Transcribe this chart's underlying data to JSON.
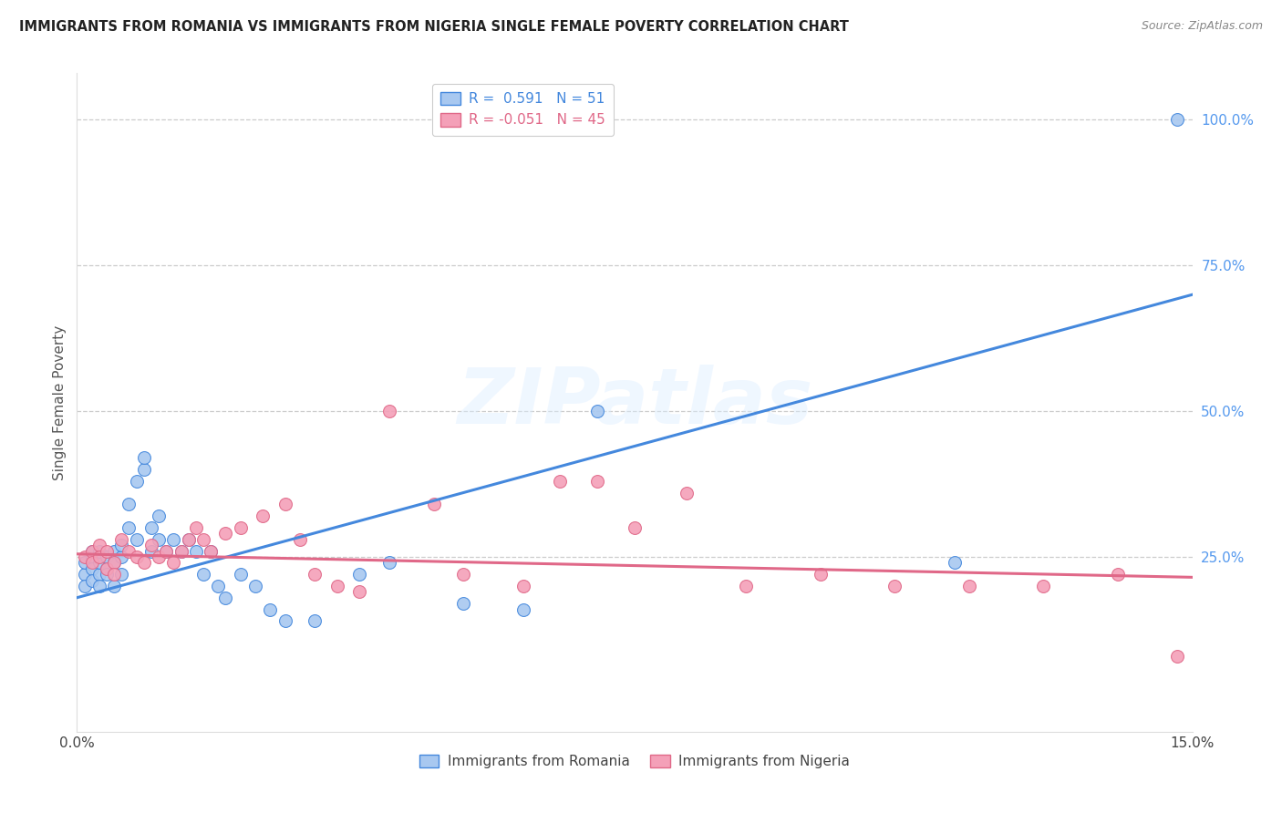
{
  "title": "IMMIGRANTS FROM ROMANIA VS IMMIGRANTS FROM NIGERIA SINGLE FEMALE POVERTY CORRELATION CHART",
  "source": "Source: ZipAtlas.com",
  "ylabel_label": "Single Female Poverty",
  "legend_label1": "Immigrants from Romania",
  "legend_label2": "Immigrants from Nigeria",
  "R1": 0.591,
  "N1": 51,
  "R2": -0.051,
  "N2": 45,
  "xmin": 0.0,
  "xmax": 0.15,
  "ymin": -0.05,
  "ymax": 1.08,
  "color_romania": "#A8C8F0",
  "color_nigeria": "#F4A0B8",
  "color_line_romania": "#4488DD",
  "color_line_nigeria": "#E06888",
  "watermark_text": "ZIPatlas",
  "romania_x": [
    0.001,
    0.001,
    0.001,
    0.002,
    0.002,
    0.002,
    0.002,
    0.003,
    0.003,
    0.003,
    0.003,
    0.004,
    0.004,
    0.004,
    0.005,
    0.005,
    0.005,
    0.006,
    0.006,
    0.006,
    0.007,
    0.007,
    0.008,
    0.008,
    0.009,
    0.009,
    0.01,
    0.01,
    0.011,
    0.011,
    0.012,
    0.013,
    0.014,
    0.015,
    0.016,
    0.017,
    0.018,
    0.019,
    0.02,
    0.022,
    0.024,
    0.026,
    0.028,
    0.032,
    0.038,
    0.042,
    0.052,
    0.06,
    0.07,
    0.118,
    0.148
  ],
  "romania_y": [
    0.22,
    0.24,
    0.2,
    0.25,
    0.23,
    0.21,
    0.26,
    0.22,
    0.24,
    0.2,
    0.26,
    0.23,
    0.25,
    0.22,
    0.2,
    0.24,
    0.26,
    0.22,
    0.25,
    0.27,
    0.3,
    0.34,
    0.28,
    0.38,
    0.4,
    0.42,
    0.26,
    0.3,
    0.28,
    0.32,
    0.26,
    0.28,
    0.26,
    0.28,
    0.26,
    0.22,
    0.26,
    0.2,
    0.18,
    0.22,
    0.2,
    0.16,
    0.14,
    0.14,
    0.22,
    0.24,
    0.17,
    0.16,
    0.5,
    0.24,
    1.0
  ],
  "nigeria_x": [
    0.001,
    0.002,
    0.002,
    0.003,
    0.003,
    0.004,
    0.004,
    0.005,
    0.005,
    0.006,
    0.007,
    0.008,
    0.009,
    0.01,
    0.011,
    0.012,
    0.013,
    0.014,
    0.015,
    0.016,
    0.017,
    0.018,
    0.02,
    0.022,
    0.025,
    0.028,
    0.03,
    0.032,
    0.035,
    0.038,
    0.042,
    0.048,
    0.052,
    0.06,
    0.065,
    0.07,
    0.075,
    0.082,
    0.09,
    0.1,
    0.11,
    0.12,
    0.13,
    0.14,
    0.148
  ],
  "nigeria_y": [
    0.25,
    0.26,
    0.24,
    0.27,
    0.25,
    0.23,
    0.26,
    0.24,
    0.22,
    0.28,
    0.26,
    0.25,
    0.24,
    0.27,
    0.25,
    0.26,
    0.24,
    0.26,
    0.28,
    0.3,
    0.28,
    0.26,
    0.29,
    0.3,
    0.32,
    0.34,
    0.28,
    0.22,
    0.2,
    0.19,
    0.5,
    0.34,
    0.22,
    0.2,
    0.38,
    0.38,
    0.3,
    0.36,
    0.2,
    0.22,
    0.2,
    0.2,
    0.2,
    0.22,
    0.08
  ]
}
